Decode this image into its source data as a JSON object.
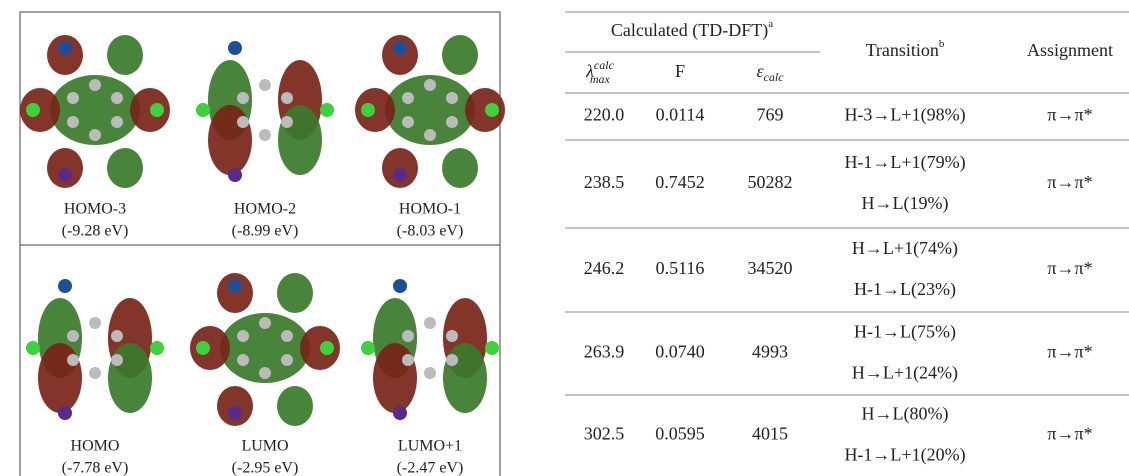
{
  "orbitals": [
    {
      "label": "HOMO-3",
      "energy": "(-9.28 eV)"
    },
    {
      "label": "HOMO-2",
      "energy": "(-8.99 eV)"
    },
    {
      "label": "HOMO-1",
      "energy": "(-8.03 eV)"
    },
    {
      "label": "HOMO",
      "energy": "(-7.78 eV)"
    },
    {
      "label": "LUMO",
      "energy": "(-2.95 eV)"
    },
    {
      "label": "LUMO+1",
      "energy": "(-2.47 eV)"
    }
  ],
  "table": {
    "header": {
      "group": "Calculated (TD-DFT)",
      "group_sup": "a",
      "lambda": "λ",
      "lambda_sup": "calc",
      "lambda_sub": "max",
      "f": "F",
      "eps": "ε",
      "eps_sub": "calc",
      "transition": "Transition",
      "transition_sup": "b",
      "assignment": "Assignment"
    },
    "rows": [
      {
        "lambda": "220.0",
        "f": "0.0114",
        "eps": "769",
        "transitions": [
          "H-3→L+1(98%)"
        ],
        "assignment": "π→π*"
      },
      {
        "lambda": "238.5",
        "f": "0.7452",
        "eps": "50282",
        "transitions": [
          "H-1→L+1(79%)",
          "H→L(19%)"
        ],
        "assignment": "π→π*"
      },
      {
        "lambda": "246.2",
        "f": "0.5116",
        "eps": "34520",
        "transitions": [
          "H→L+1(74%)",
          "H-1→L(23%)"
        ],
        "assignment": "π→π*"
      },
      {
        "lambda": "263.9",
        "f": "0.0740",
        "eps": "4993",
        "transitions": [
          "H-1→L(75%)",
          "H→L+1(24%)"
        ],
        "assignment": "π→π*"
      },
      {
        "lambda": "302.5",
        "f": "0.0595",
        "eps": "4015",
        "transitions": [
          "H→L(80%)",
          "H-1→L+1(20%)"
        ],
        "assignment": "π→π*"
      }
    ]
  }
}
